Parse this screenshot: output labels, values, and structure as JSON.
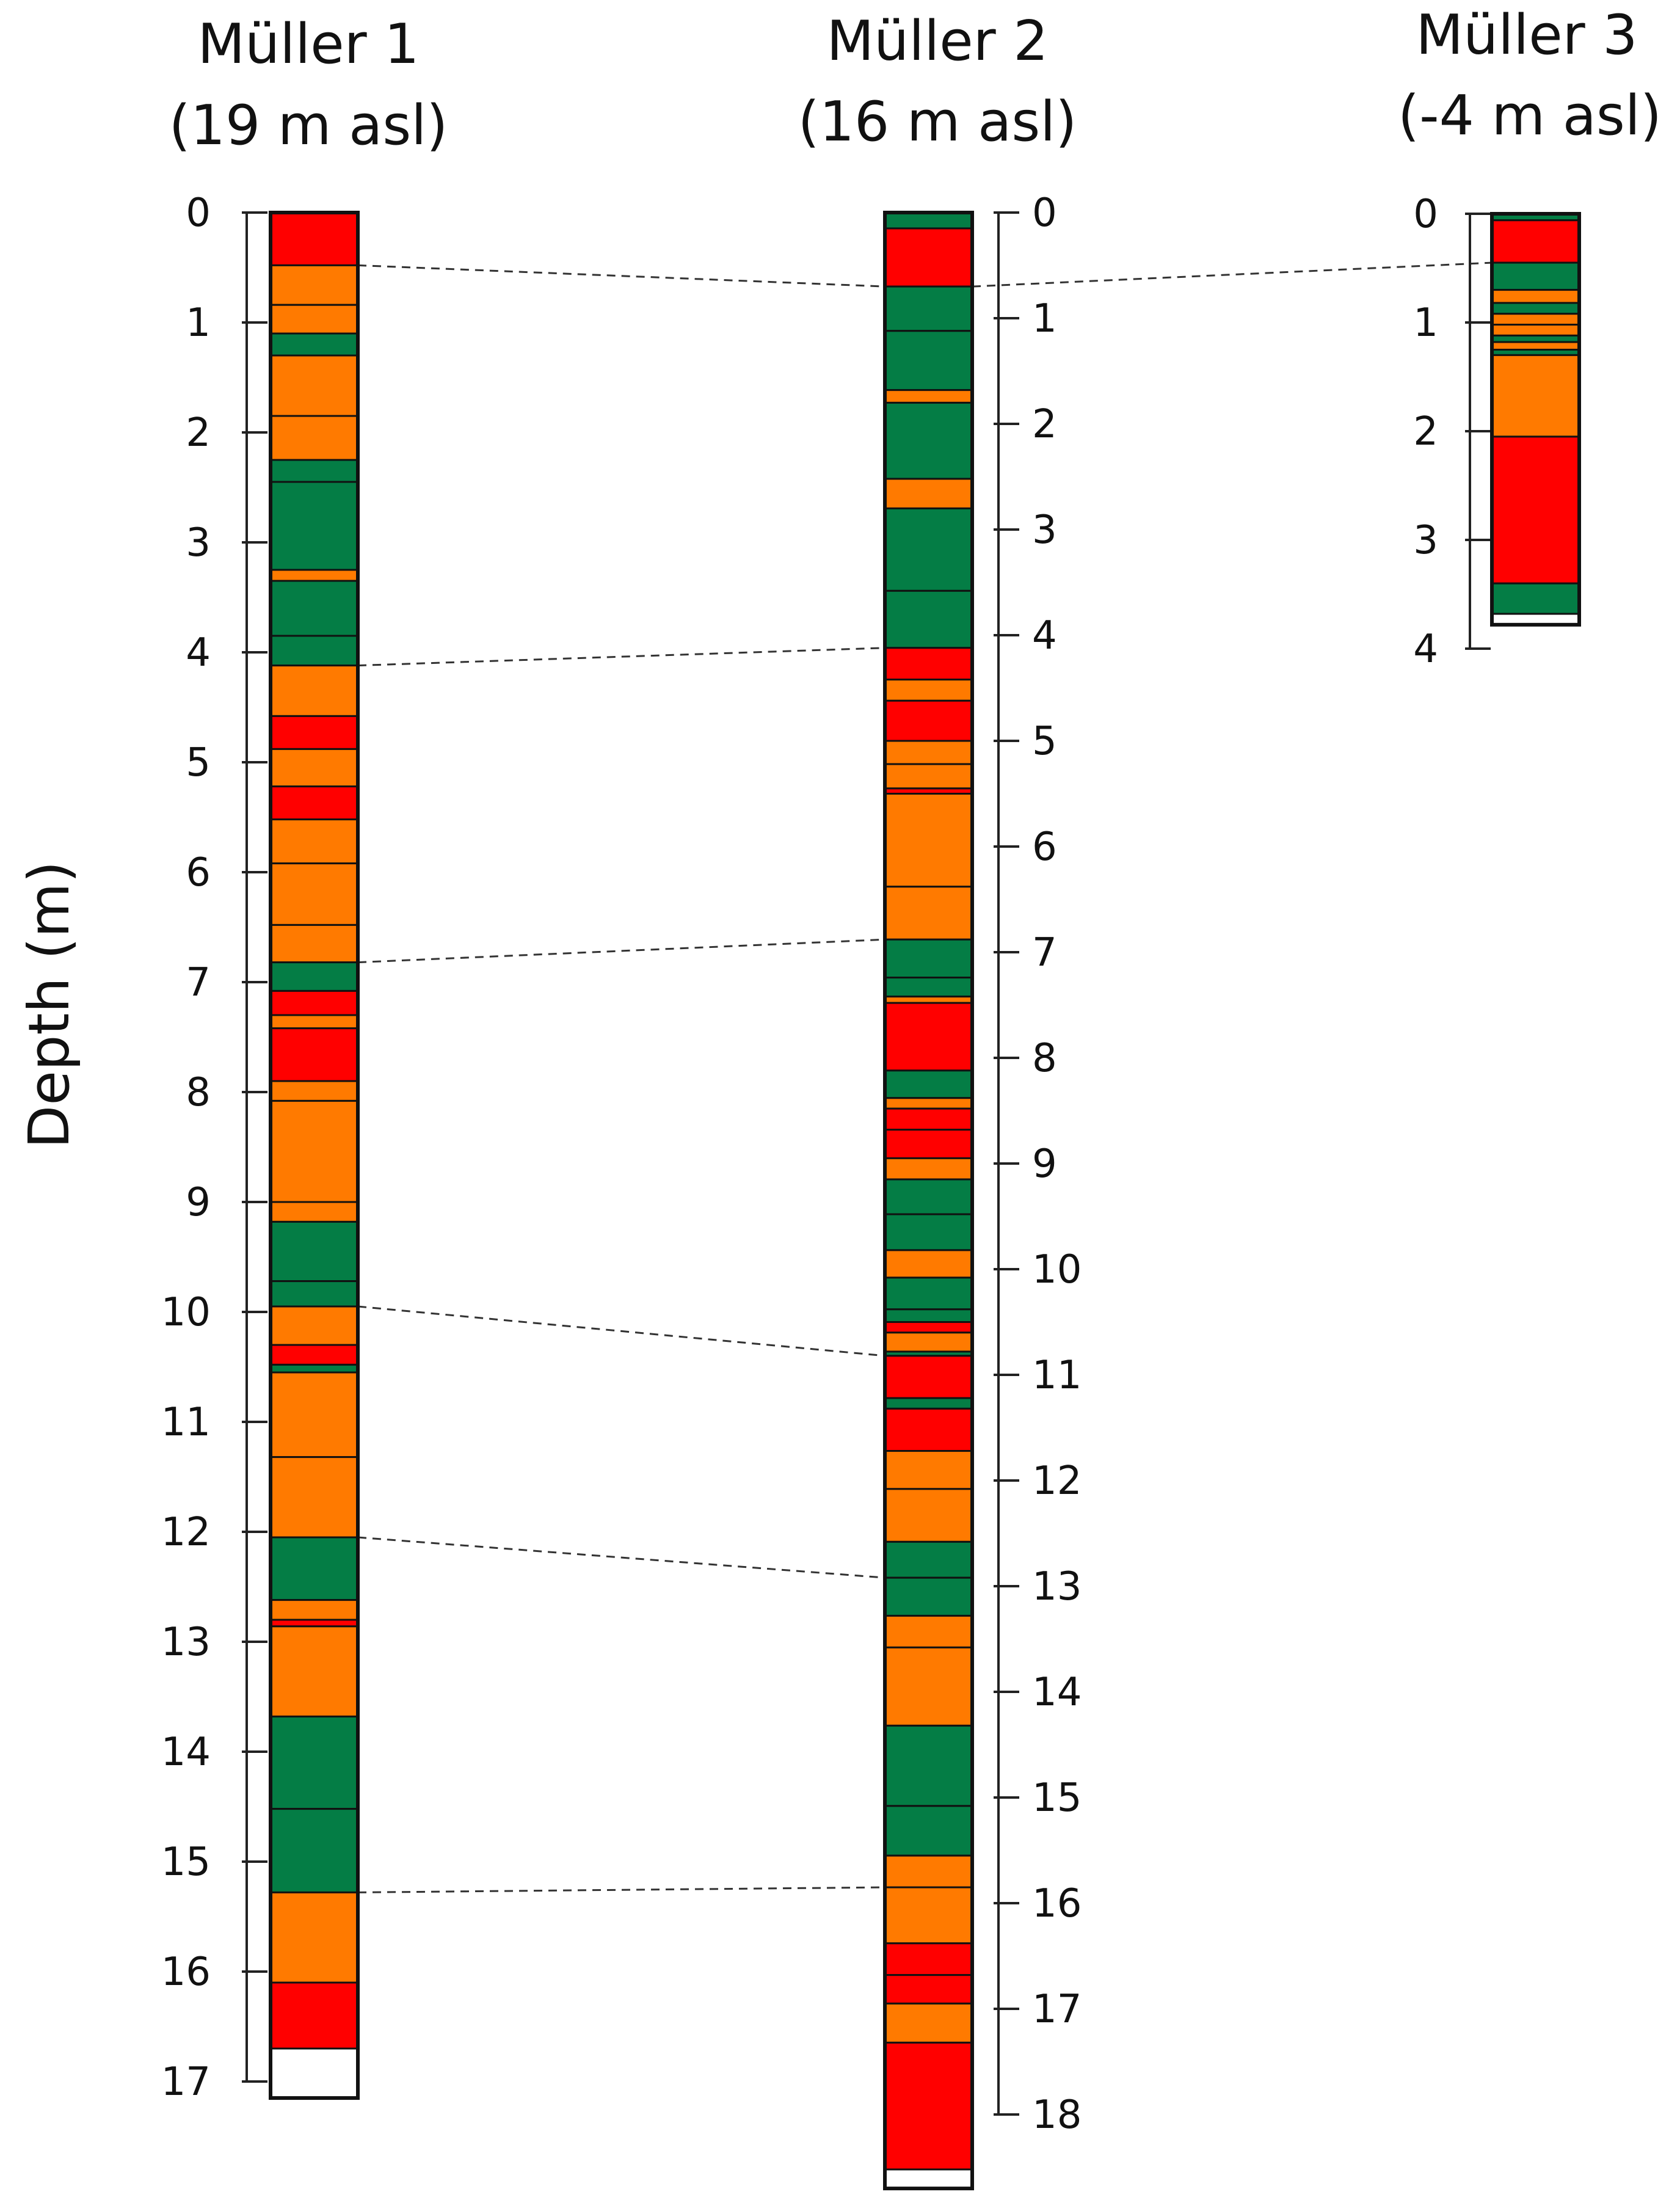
{
  "chart_data": {
    "type": "stratigraphic-log",
    "ylabel": "Depth (m)",
    "colors": {
      "green": "#047d45",
      "orange": "#ff7a00",
      "red": "#ff0000",
      "white": "#ffffff",
      "stroke": "#111111",
      "scale": "#222222",
      "correlation": "#333333"
    },
    "cores": [
      {
        "name": "Müller 1",
        "elevation": "(19 m asl)",
        "depth_max": 17,
        "tick_labels": [
          "0",
          "1",
          "2",
          "3",
          "4",
          "5",
          "6",
          "7",
          "8",
          "9",
          "10",
          "11",
          "12",
          "13",
          "14",
          "15",
          "16",
          "17"
        ],
        "layers": [
          [
            0.0,
            0.48,
            "red"
          ],
          [
            0.48,
            0.84,
            "orange"
          ],
          [
            0.84,
            1.1,
            "orange"
          ],
          [
            1.1,
            1.3,
            "green"
          ],
          [
            1.3,
            1.85,
            "orange"
          ],
          [
            1.85,
            2.25,
            "orange"
          ],
          [
            2.25,
            2.45,
            "green"
          ],
          [
            2.45,
            3.25,
            "green"
          ],
          [
            3.25,
            3.35,
            "orange"
          ],
          [
            3.35,
            3.85,
            "green"
          ],
          [
            3.85,
            4.12,
            "green"
          ],
          [
            4.12,
            4.58,
            "orange"
          ],
          [
            4.58,
            4.88,
            "red"
          ],
          [
            4.88,
            5.22,
            "orange"
          ],
          [
            5.22,
            5.52,
            "red"
          ],
          [
            5.52,
            5.92,
            "orange"
          ],
          [
            5.92,
            6.48,
            "orange"
          ],
          [
            6.48,
            6.82,
            "orange"
          ],
          [
            6.82,
            7.08,
            "green"
          ],
          [
            7.08,
            7.3,
            "red"
          ],
          [
            7.3,
            7.42,
            "orange"
          ],
          [
            7.42,
            7.9,
            "red"
          ],
          [
            7.9,
            8.08,
            "orange"
          ],
          [
            8.08,
            9.0,
            "orange"
          ],
          [
            9.0,
            9.18,
            "orange"
          ],
          [
            9.18,
            9.72,
            "green"
          ],
          [
            9.72,
            9.95,
            "green"
          ],
          [
            9.95,
            10.3,
            "orange"
          ],
          [
            10.3,
            10.48,
            "red"
          ],
          [
            10.48,
            10.55,
            "green"
          ],
          [
            10.55,
            11.32,
            "orange"
          ],
          [
            11.32,
            12.05,
            "orange"
          ],
          [
            12.05,
            12.62,
            "green"
          ],
          [
            12.62,
            12.8,
            "orange"
          ],
          [
            12.8,
            12.86,
            "red"
          ],
          [
            12.86,
            13.68,
            "orange"
          ],
          [
            13.68,
            14.52,
            "green"
          ],
          [
            14.52,
            15.28,
            "green"
          ],
          [
            15.28,
            16.1,
            "orange"
          ],
          [
            16.1,
            16.7,
            "red"
          ],
          [
            16.7,
            17.15,
            "white"
          ]
        ]
      },
      {
        "name": "Müller 2",
        "elevation": "(16 m asl)",
        "depth_max": 18,
        "tick_labels": [
          "0",
          "1",
          "2",
          "3",
          "4",
          "5",
          "6",
          "7",
          "8",
          "9",
          "10",
          "11",
          "12",
          "13",
          "14",
          "15",
          "16",
          "17",
          "18"
        ],
        "layers": [
          [
            0.0,
            0.15,
            "green"
          ],
          [
            0.15,
            0.7,
            "red"
          ],
          [
            0.7,
            1.12,
            "green"
          ],
          [
            1.12,
            1.68,
            "green"
          ],
          [
            1.68,
            1.8,
            "orange"
          ],
          [
            1.8,
            2.52,
            "green"
          ],
          [
            2.52,
            2.8,
            "orange"
          ],
          [
            2.8,
            3.58,
            "green"
          ],
          [
            3.58,
            4.12,
            "green"
          ],
          [
            4.12,
            4.42,
            "red"
          ],
          [
            4.42,
            4.62,
            "orange"
          ],
          [
            4.62,
            5.0,
            "red"
          ],
          [
            5.0,
            5.22,
            "orange"
          ],
          [
            5.22,
            5.45,
            "orange"
          ],
          [
            5.45,
            5.5,
            "red"
          ],
          [
            5.5,
            6.38,
            "orange"
          ],
          [
            6.38,
            6.88,
            "orange"
          ],
          [
            6.88,
            7.24,
            "green"
          ],
          [
            7.24,
            7.42,
            "green"
          ],
          [
            7.42,
            7.48,
            "orange"
          ],
          [
            7.48,
            8.12,
            "red"
          ],
          [
            8.12,
            8.38,
            "green"
          ],
          [
            8.38,
            8.48,
            "orange"
          ],
          [
            8.48,
            8.68,
            "red"
          ],
          [
            8.68,
            8.95,
            "red"
          ],
          [
            8.95,
            9.15,
            "orange"
          ],
          [
            9.15,
            9.48,
            "green"
          ],
          [
            9.48,
            9.82,
            "green"
          ],
          [
            9.82,
            10.08,
            "orange"
          ],
          [
            10.08,
            10.38,
            "green"
          ],
          [
            10.38,
            10.5,
            "green"
          ],
          [
            10.5,
            10.6,
            "red"
          ],
          [
            10.6,
            10.78,
            "orange"
          ],
          [
            10.78,
            10.82,
            "green"
          ],
          [
            10.82,
            11.22,
            "red"
          ],
          [
            11.22,
            11.32,
            "green"
          ],
          [
            11.32,
            11.72,
            "red"
          ],
          [
            11.72,
            12.08,
            "orange"
          ],
          [
            12.08,
            12.58,
            "orange"
          ],
          [
            12.58,
            12.92,
            "green"
          ],
          [
            12.92,
            13.28,
            "green"
          ],
          [
            13.28,
            13.58,
            "orange"
          ],
          [
            13.58,
            14.32,
            "orange"
          ],
          [
            14.32,
            15.08,
            "green"
          ],
          [
            15.08,
            15.55,
            "green"
          ],
          [
            15.55,
            15.85,
            "orange"
          ],
          [
            15.85,
            16.38,
            "orange"
          ],
          [
            16.38,
            16.68,
            "red"
          ],
          [
            16.68,
            16.95,
            "red"
          ],
          [
            16.95,
            17.32,
            "orange"
          ],
          [
            17.32,
            18.52,
            "red"
          ],
          [
            18.52,
            18.7,
            "white"
          ]
        ]
      },
      {
        "name": "Müller 3",
        "elevation": "(-4 m asl)",
        "depth_max": 4,
        "tick_labels": [
          "0",
          "1",
          "2",
          "3",
          "4"
        ],
        "layers": [
          [
            0.0,
            0.06,
            "green"
          ],
          [
            0.06,
            0.45,
            "red"
          ],
          [
            0.45,
            0.7,
            "green"
          ],
          [
            0.7,
            0.82,
            "orange"
          ],
          [
            0.82,
            0.92,
            "green"
          ],
          [
            0.92,
            1.02,
            "orange"
          ],
          [
            1.02,
            1.12,
            "orange"
          ],
          [
            1.12,
            1.18,
            "green"
          ],
          [
            1.18,
            1.25,
            "orange"
          ],
          [
            1.25,
            1.3,
            "green"
          ],
          [
            1.3,
            2.05,
            "orange"
          ],
          [
            2.05,
            3.4,
            "red"
          ],
          [
            3.4,
            3.68,
            "green"
          ],
          [
            3.68,
            3.78,
            "white"
          ]
        ]
      }
    ],
    "correlations": [
      [
        0.48,
        0.7
      ],
      [
        4.12,
        4.12
      ],
      [
        6.82,
        6.88
      ],
      [
        9.95,
        10.82
      ],
      [
        12.05,
        12.92
      ],
      [
        15.28,
        15.85
      ]
    ],
    "correlation_m2_m3": [
      0.7,
      0.45
    ]
  }
}
